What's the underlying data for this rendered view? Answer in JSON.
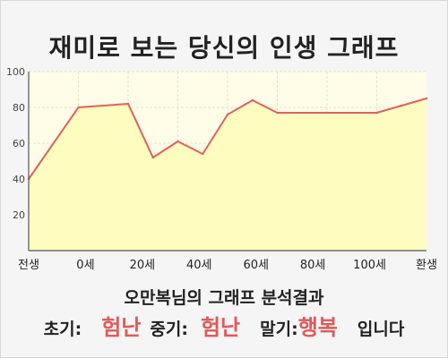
{
  "title": "재미로 보는 당신의 인생 그래프",
  "summary": {
    "heading": "오만복님의 그래프 분석결과",
    "early_label": "초기:",
    "early_value": "험난",
    "mid_label": "중기:",
    "mid_value": "험난",
    "late_label": "말기:",
    "late_value": "행복",
    "ending": "입니다"
  },
  "colors": {
    "line": "#e06060",
    "fill": "#fffcc0",
    "plot_bg": "#fffde8",
    "grid": "#e6e3c8",
    "accent_text": "#e05a5a"
  },
  "chart_data": {
    "type": "area",
    "title": "재미로 보는 당신의 인생 그래프",
    "xlabel": "",
    "ylabel": "",
    "ylim": [
      0,
      100
    ],
    "y_ticks": [
      20,
      40,
      60,
      80,
      100
    ],
    "x_tick_labels": [
      "전생",
      "0세",
      "20세",
      "40세",
      "60세",
      "80세",
      "100세",
      "환생"
    ],
    "x": [
      -10,
      0,
      10,
      15,
      20,
      25,
      30,
      35,
      40,
      50,
      60,
      65,
      70
    ],
    "values": [
      40,
      80,
      82,
      52,
      61,
      54,
      76,
      84,
      77,
      77,
      77,
      81,
      85
    ],
    "grid": true,
    "legend": "none"
  }
}
